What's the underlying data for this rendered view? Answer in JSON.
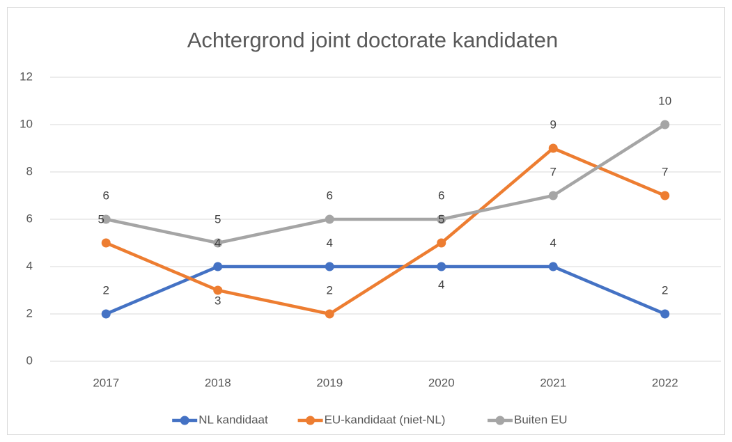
{
  "chart_data": {
    "type": "line",
    "title": "Achtergrond joint doctorate kandidaten",
    "categories": [
      "2017",
      "2018",
      "2019",
      "2020",
      "2021",
      "2022"
    ],
    "series": [
      {
        "name": "NL kandidaat",
        "color": "#4472c4",
        "values": [
          2,
          4,
          4,
          4,
          4,
          2
        ]
      },
      {
        "name": "EU-kandidaat (niet-NL)",
        "color": "#ed7d31",
        "values": [
          5,
          3,
          2,
          5,
          9,
          7
        ]
      },
      {
        "name": "Buiten EU",
        "color": "#a5a5a5",
        "values": [
          6,
          5,
          6,
          6,
          7,
          10
        ]
      }
    ],
    "ylim": [
      0,
      12
    ],
    "yticks": [
      0,
      2,
      4,
      6,
      8,
      10,
      12
    ],
    "grid": true,
    "legend": "bottom"
  }
}
